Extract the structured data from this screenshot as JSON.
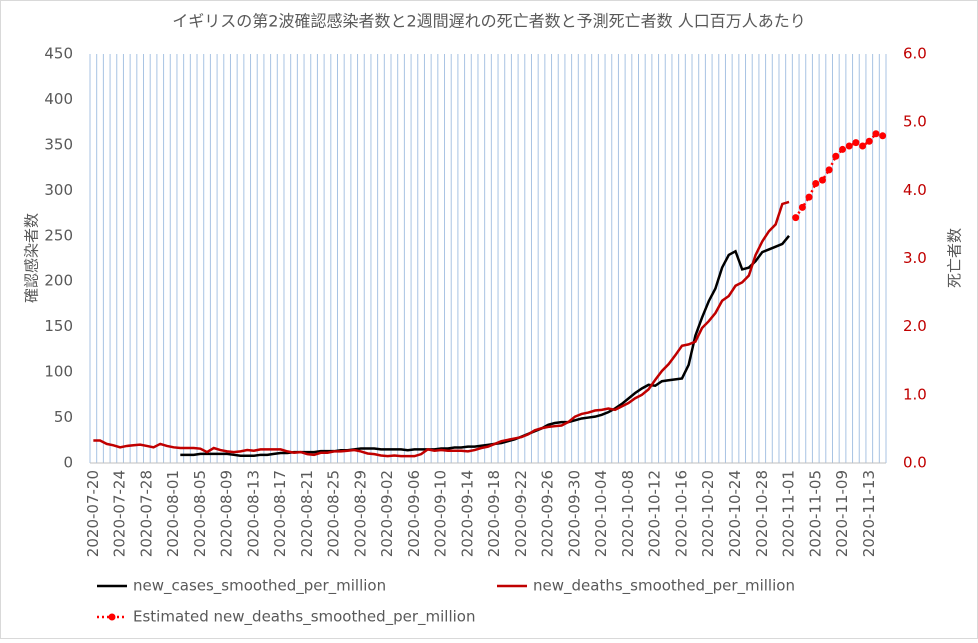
{
  "chart_data": {
    "type": "line",
    "title": "イギリスの第2波確認感染者数と2週間遅れの死亡者数と予測死亡者数 人口百万人あたり",
    "ylabel": "確認感染者数",
    "y2label": "死亡者数",
    "categories": [
      "2020-07-20",
      null,
      null,
      null,
      "2020-07-24",
      null,
      null,
      null,
      "2020-07-28",
      null,
      null,
      null,
      "2020-08-01",
      null,
      null,
      null,
      "2020-08-05",
      null,
      null,
      null,
      "2020-08-09",
      null,
      null,
      null,
      "2020-08-13",
      null,
      null,
      null,
      "2020-08-17",
      null,
      null,
      null,
      "2020-08-21",
      null,
      null,
      null,
      "2020-08-25",
      null,
      null,
      null,
      "2020-08-29",
      null,
      null,
      null,
      "2020-09-02",
      null,
      null,
      null,
      "2020-09-06",
      null,
      null,
      null,
      "2020-09-10",
      null,
      null,
      null,
      "2020-09-14",
      null,
      null,
      null,
      "2020-09-18",
      null,
      null,
      null,
      "2020-09-22",
      null,
      null,
      null,
      "2020-09-26",
      null,
      null,
      null,
      "2020-09-30",
      null,
      null,
      null,
      "2020-10-04",
      null,
      null,
      null,
      "2020-10-08",
      null,
      null,
      null,
      "2020-10-12",
      null,
      null,
      null,
      "2020-10-16",
      null,
      null,
      null,
      "2020-10-20",
      null,
      null,
      null,
      "2020-10-24",
      null,
      null,
      null,
      "2020-10-28",
      null,
      null,
      null,
      "2020-11-01",
      null,
      null,
      null,
      "2020-11-05",
      null,
      null,
      null,
      "2020-11-09",
      null,
      null,
      null,
      "2020-11-13",
      null,
      null
    ],
    "series": [
      {
        "name": "new_cases_smoothed_per_million",
        "color": "#000000",
        "axis": "y",
        "values": [
          null,
          null,
          null,
          null,
          null,
          null,
          null,
          null,
          null,
          null,
          null,
          null,
          null,
          9,
          9,
          9,
          10,
          10,
          10,
          10,
          10,
          9,
          8,
          8,
          8,
          9,
          9,
          10,
          11,
          11,
          12,
          12,
          12,
          12,
          13,
          13,
          13,
          14,
          14,
          15,
          16,
          16,
          16,
          15,
          15,
          15,
          15,
          14,
          15,
          15,
          15,
          15,
          16,
          16,
          17,
          17,
          18,
          18,
          19,
          20,
          21,
          22,
          24,
          26,
          29,
          32,
          35,
          38,
          42,
          44,
          45,
          45,
          47,
          49,
          50,
          51,
          53,
          56,
          60,
          65,
          71,
          77,
          82,
          86,
          85,
          90,
          91,
          92,
          93,
          108,
          140,
          160,
          178,
          192,
          215,
          229,
          233,
          213,
          215,
          222,
          232,
          235,
          238,
          241,
          250,
          null,
          null,
          null,
          null,
          null,
          null,
          null,
          null,
          null,
          null,
          null,
          null,
          null,
          null
        ]
      },
      {
        "name": "new_deaths_smoothed_per_million",
        "color": "#c00000",
        "axis": "y2",
        "values": [
          0.33,
          0.33,
          0.28,
          0.26,
          0.23,
          0.25,
          0.26,
          0.27,
          0.25,
          0.23,
          0.28,
          0.25,
          0.23,
          0.22,
          0.22,
          0.22,
          0.21,
          0.16,
          0.22,
          0.19,
          0.17,
          0.16,
          0.17,
          0.19,
          0.18,
          0.2,
          0.2,
          0.2,
          0.2,
          0.17,
          0.15,
          0.16,
          0.13,
          0.12,
          0.15,
          0.15,
          0.17,
          0.17,
          0.18,
          0.19,
          0.17,
          0.14,
          0.13,
          0.11,
          0.1,
          0.11,
          0.1,
          0.1,
          0.1,
          0.13,
          0.2,
          0.18,
          0.19,
          0.18,
          0.18,
          0.18,
          0.17,
          0.19,
          0.22,
          0.24,
          0.28,
          0.32,
          0.34,
          0.36,
          0.38,
          0.42,
          0.48,
          0.51,
          0.53,
          0.54,
          0.55,
          0.6,
          0.68,
          0.72,
          0.74,
          0.77,
          0.78,
          0.8,
          0.78,
          0.83,
          0.88,
          0.95,
          1.0,
          1.08,
          1.22,
          1.35,
          1.45,
          1.58,
          1.72,
          1.74,
          1.78,
          1.98,
          2.08,
          2.2,
          2.38,
          2.45,
          2.6,
          2.65,
          2.75,
          3.05,
          3.25,
          3.4,
          3.5,
          3.8,
          3.83,
          null,
          null,
          null,
          null,
          null,
          null,
          null,
          null,
          null,
          null,
          null,
          null,
          null,
          null
        ]
      },
      {
        "name": "Estimated new_deaths_smoothed_per_million",
        "color": "#ff0000",
        "axis": "y2",
        "dash": "dotted",
        "marker": "circle",
        "values": [
          null,
          null,
          null,
          null,
          null,
          null,
          null,
          null,
          null,
          null,
          null,
          null,
          null,
          null,
          null,
          null,
          null,
          null,
          null,
          null,
          null,
          null,
          null,
          null,
          null,
          null,
          null,
          null,
          null,
          null,
          null,
          null,
          null,
          null,
          null,
          null,
          null,
          null,
          null,
          null,
          null,
          null,
          null,
          null,
          null,
          null,
          null,
          null,
          null,
          null,
          null,
          null,
          null,
          null,
          null,
          null,
          null,
          null,
          null,
          null,
          null,
          null,
          null,
          null,
          null,
          null,
          null,
          null,
          null,
          null,
          null,
          null,
          null,
          null,
          null,
          null,
          null,
          null,
          null,
          null,
          null,
          null,
          null,
          null,
          null,
          null,
          null,
          null,
          null,
          null,
          null,
          null,
          null,
          null,
          null,
          null,
          null,
          null,
          null,
          null,
          null,
          null,
          null,
          null,
          null,
          3.6,
          3.75,
          3.9,
          4.1,
          4.15,
          4.3,
          4.5,
          4.6,
          4.65,
          4.7,
          4.65,
          4.72,
          4.83,
          4.8
        ]
      }
    ],
    "ylim": [
      0,
      450
    ],
    "yticks": [
      0,
      50,
      100,
      150,
      200,
      250,
      300,
      350,
      400,
      450
    ],
    "y2lim": [
      0,
      6
    ],
    "y2ticks": [
      {
        "value": 0,
        "label": "0.0"
      },
      {
        "value": 1,
        "label": "1.0"
      },
      {
        "value": 2,
        "label": "2.0"
      },
      {
        "value": 3,
        "label": "3.0"
      },
      {
        "value": 4,
        "label": "4.0"
      },
      {
        "value": 5,
        "label": "5.0"
      },
      {
        "value": 6,
        "label": "6.0"
      }
    ],
    "y2color": "#c00000",
    "grid": "vertical",
    "legend": "bottom"
  }
}
